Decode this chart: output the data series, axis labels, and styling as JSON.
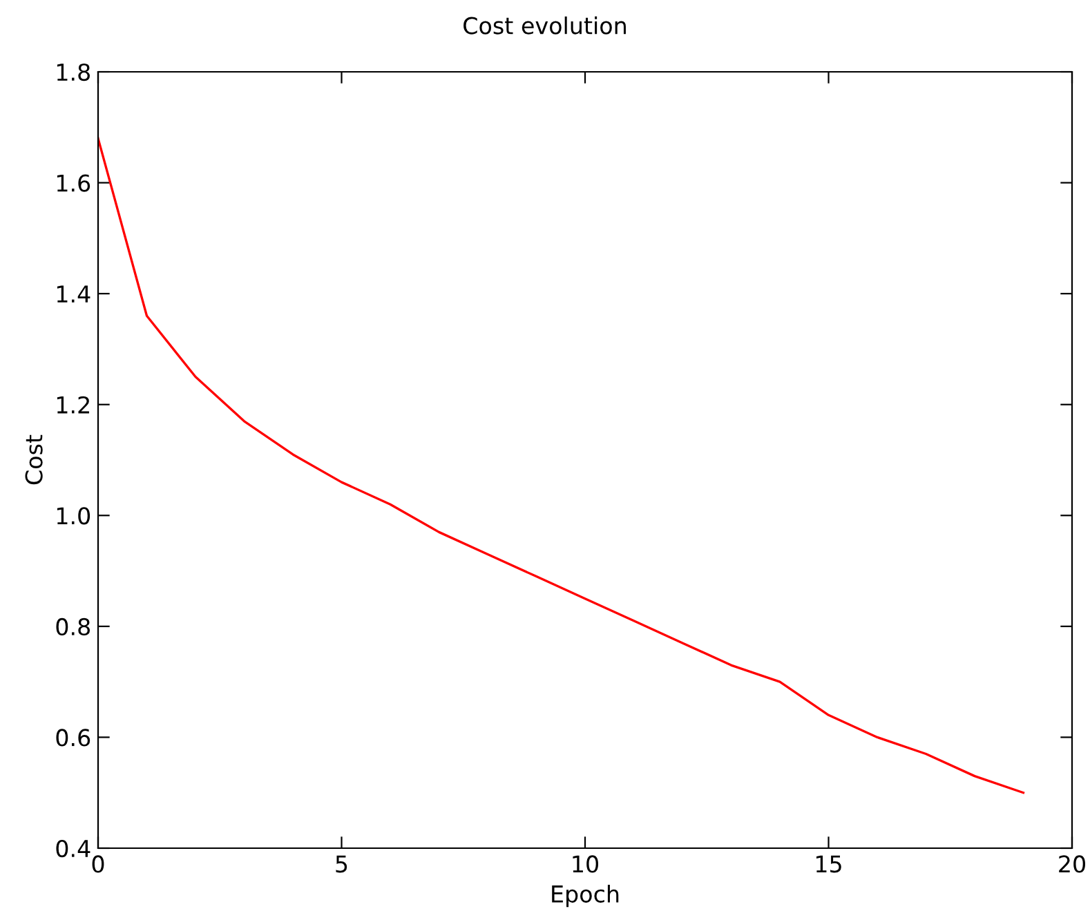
{
  "chart_data": {
    "type": "line",
    "title": "Cost evolution",
    "xlabel": "Epoch",
    "ylabel": "Cost",
    "x": [
      0,
      1,
      2,
      3,
      4,
      5,
      6,
      7,
      8,
      9,
      10,
      11,
      12,
      13,
      14,
      15,
      16,
      17,
      18,
      19
    ],
    "series": [
      {
        "color": "#ff0000",
        "values": [
          1.68,
          1.36,
          1.25,
          1.17,
          1.11,
          1.06,
          1.02,
          0.97,
          0.93,
          0.89,
          0.85,
          0.81,
          0.77,
          0.73,
          0.7,
          0.64,
          0.6,
          0.57,
          0.53,
          0.5
        ]
      }
    ],
    "xlim": [
      0,
      20
    ],
    "xticks": [
      0,
      5,
      10,
      15,
      20
    ],
    "ylim": [
      0.4,
      1.8
    ],
    "yticks": [
      {
        "value": 0.4,
        "label": "0.4"
      },
      {
        "value": 0.6,
        "label": "0.6"
      },
      {
        "value": 0.8,
        "label": "0.8"
      },
      {
        "value": 1.0,
        "label": "1.0"
      },
      {
        "value": 1.2,
        "label": "1.2"
      },
      {
        "value": 1.4,
        "label": "1.4"
      },
      {
        "value": 1.6,
        "label": "1.6"
      },
      {
        "value": 1.8,
        "label": "1.8"
      }
    ],
    "grid": false,
    "legend": false,
    "marker": "none",
    "line_style": "solid"
  }
}
